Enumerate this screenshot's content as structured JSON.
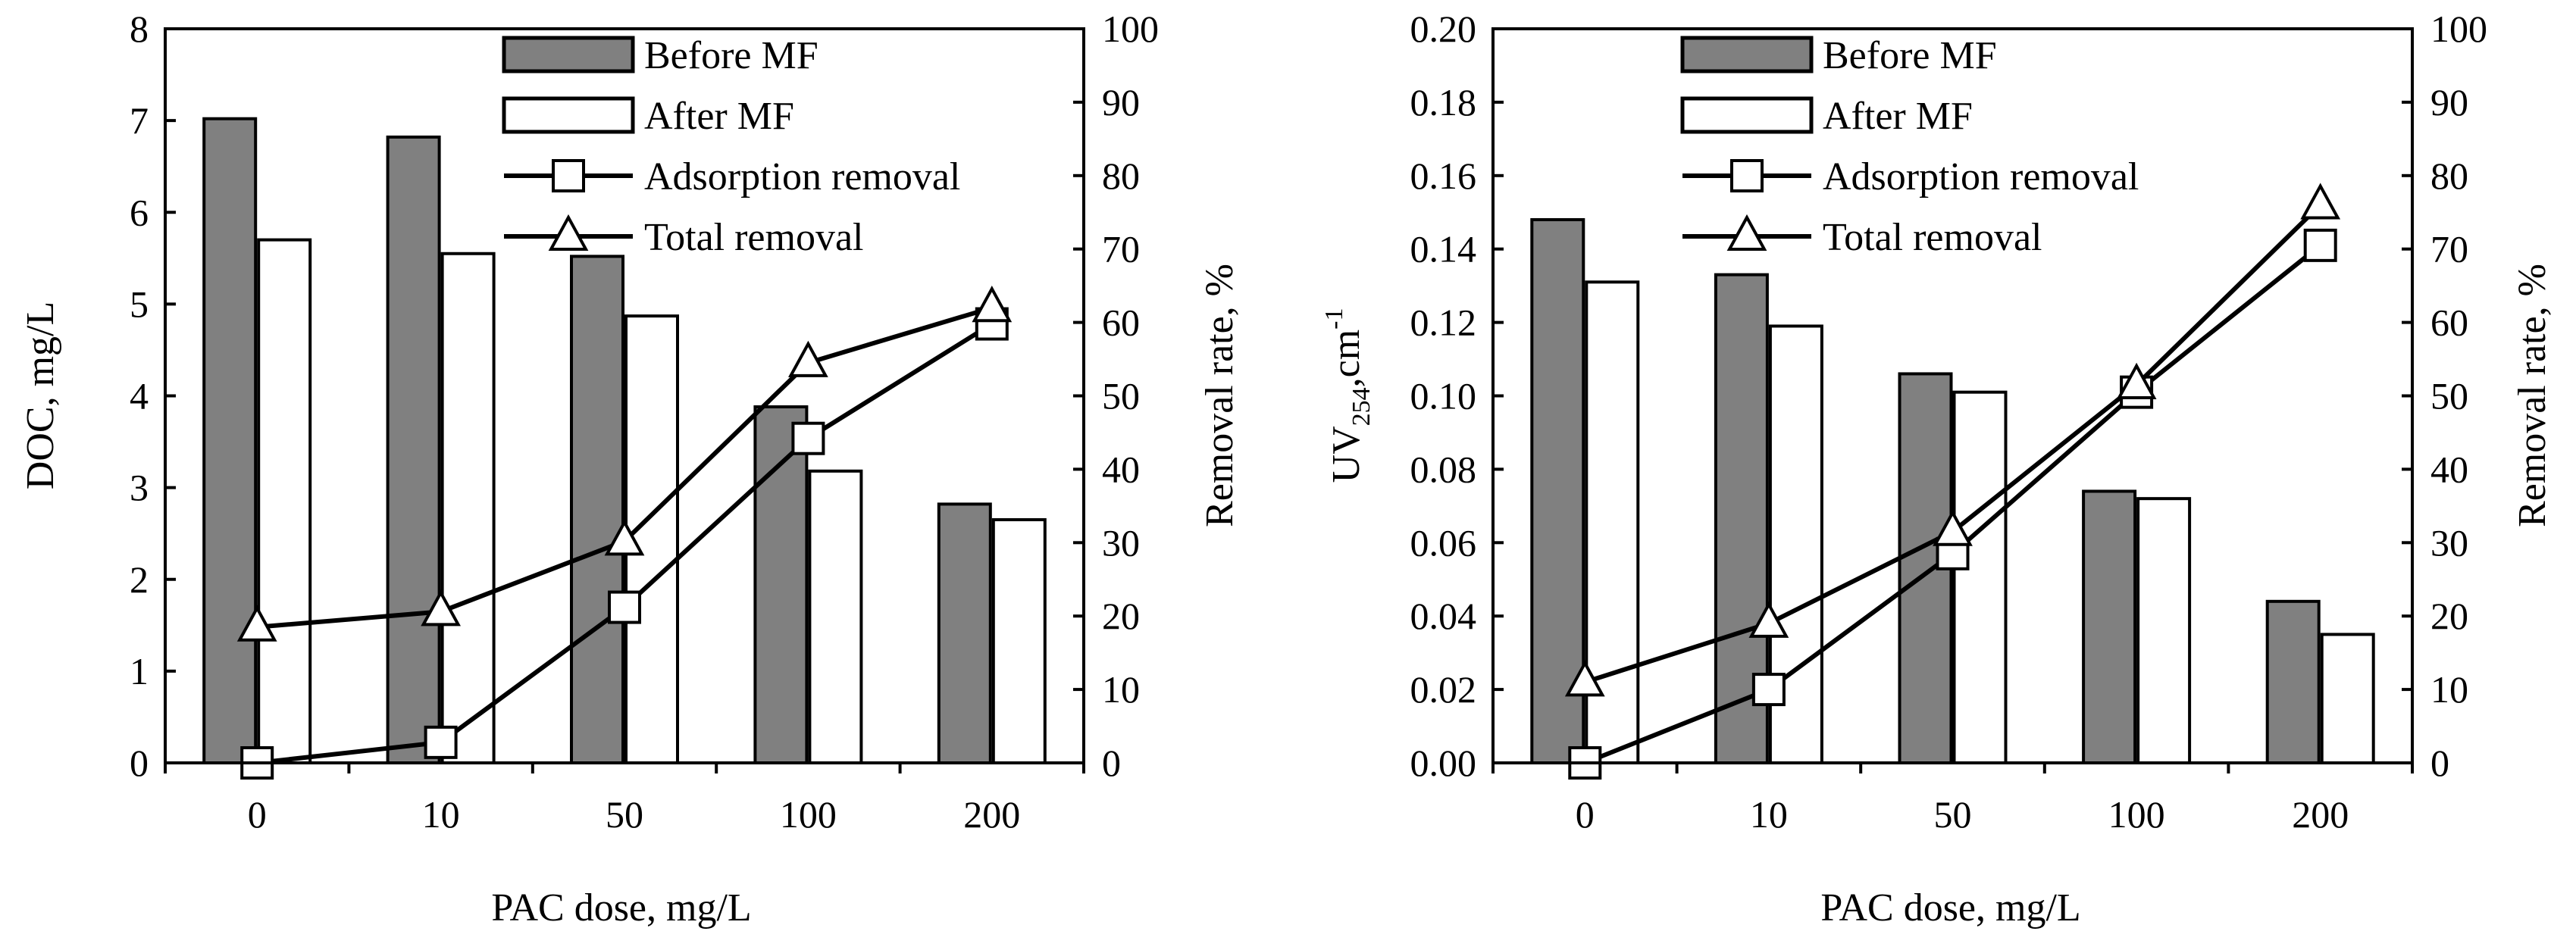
{
  "chart_data": [
    {
      "type": "bar",
      "categories": [
        "0",
        "10",
        "50",
        "100",
        "200"
      ],
      "xlabel": "PAC dose, mg/L",
      "ylabel": "DOC, mg/L",
      "ylabel_right": "Removal rate, %",
      "ylim": [
        0,
        8
      ],
      "y_ticks": [
        "0",
        "1",
        "2",
        "3",
        "4",
        "5",
        "6",
        "7",
        "8"
      ],
      "ylim_right": [
        0,
        100
      ],
      "y_ticks_right": [
        "0",
        "10",
        "20",
        "30",
        "40",
        "50",
        "60",
        "70",
        "80",
        "90",
        "100"
      ],
      "bar_series": [
        {
          "name": "Before MF",
          "values": [
            7.02,
            6.82,
            5.52,
            3.88,
            2.82
          ],
          "color": "#808080"
        },
        {
          "name": "After MF",
          "values": [
            5.7,
            5.55,
            4.87,
            3.18,
            2.65
          ],
          "color": "#ffffff"
        }
      ],
      "line_series": [
        {
          "name": "Adsorption removal",
          "marker": "square",
          "values": [
            0,
            2.8,
            21.2,
            44.2,
            59.8
          ]
        },
        {
          "name": "Total removal",
          "marker": "triangle",
          "values": [
            18.5,
            20.6,
            30.2,
            54.5,
            62.0
          ]
        }
      ],
      "legend_position": "top-right"
    },
    {
      "type": "bar",
      "categories": [
        "0",
        "10",
        "50",
        "100",
        "200"
      ],
      "xlabel": "PAC dose, mg/L",
      "ylabel": "UV",
      "ylabel_sub": "254",
      "ylabel_tail": ",cm",
      "ylabel_sup": "-1",
      "ylabel_right": "Removal rate, %",
      "ylim": [
        0,
        0.2
      ],
      "y_ticks": [
        "0.00",
        "0.02",
        "0.04",
        "0.06",
        "0.08",
        "0.10",
        "0.12",
        "0.14",
        "0.16",
        "0.18",
        "0.20"
      ],
      "ylim_right": [
        0,
        100
      ],
      "y_ticks_right": [
        "0",
        "10",
        "20",
        "30",
        "40",
        "50",
        "60",
        "70",
        "80",
        "90",
        "100"
      ],
      "bar_series": [
        {
          "name": "Before MF",
          "values": [
            0.148,
            0.133,
            0.106,
            0.074,
            0.044
          ],
          "color": "#808080"
        },
        {
          "name": "After MF",
          "values": [
            0.131,
            0.119,
            0.101,
            0.072,
            0.035
          ],
          "color": "#ffffff"
        }
      ],
      "line_series": [
        {
          "name": "Adsorption removal",
          "marker": "square",
          "values": [
            0,
            10,
            28.5,
            50.5,
            70.5
          ]
        },
        {
          "name": "Total removal",
          "marker": "triangle",
          "values": [
            11,
            19,
            31.5,
            51.5,
            76
          ]
        }
      ],
      "legend_position": "top-left"
    }
  ]
}
